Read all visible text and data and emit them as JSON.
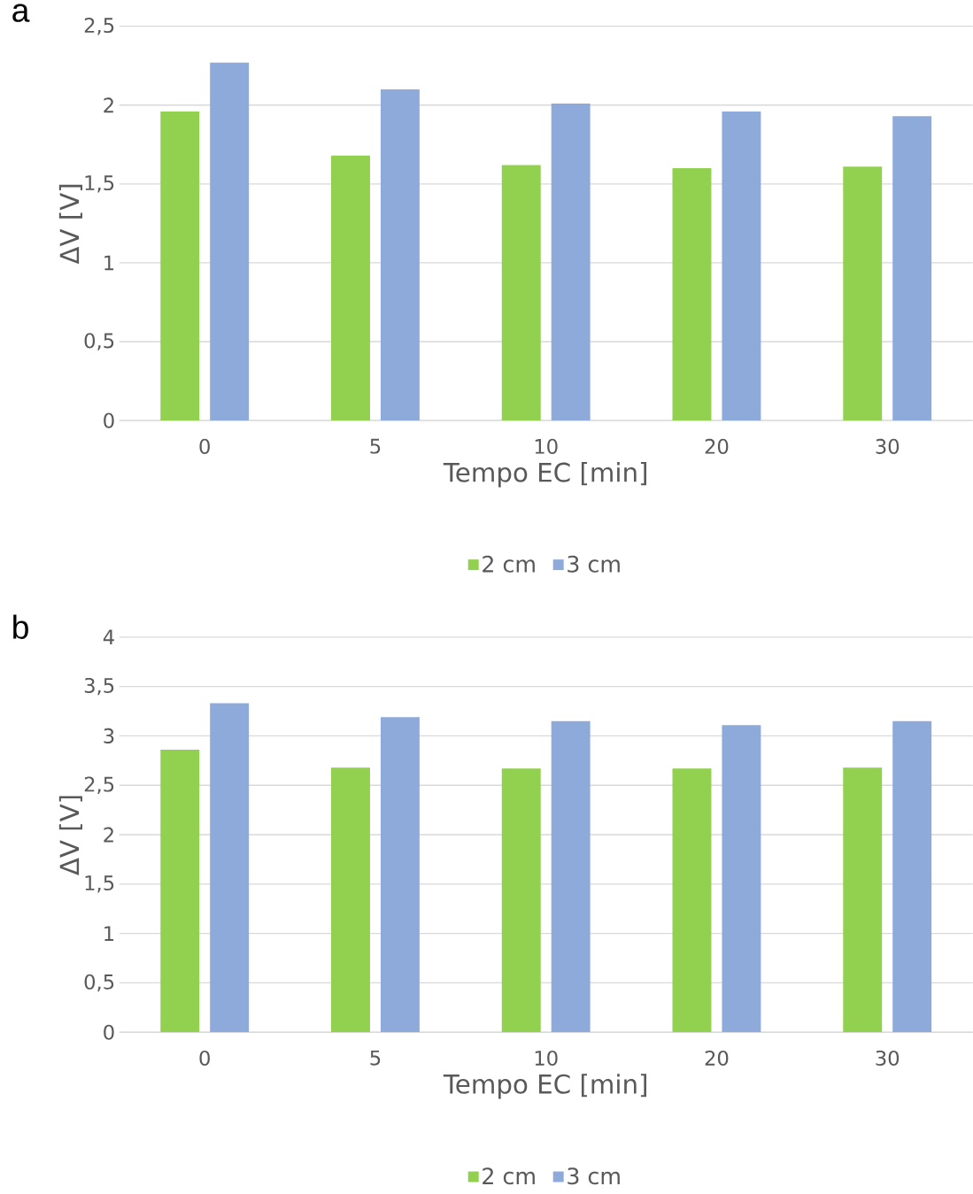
{
  "chart_data": [
    {
      "type": "bar",
      "annotations": [
        "a"
      ],
      "xlabel": "Tempo EC [min]",
      "ylabel": "ΔV [V]",
      "categories": [
        "0",
        "5",
        "10",
        "20",
        "30"
      ],
      "series": [
        {
          "name": "2 cm",
          "color": "#92d050",
          "values": [
            1.96,
            1.68,
            1.62,
            1.6,
            1.61
          ]
        },
        {
          "name": "3 cm",
          "color": "#8eaadb",
          "values": [
            2.27,
            2.1,
            2.01,
            1.96,
            1.93
          ]
        }
      ],
      "ylim": [
        0,
        2.5
      ],
      "yticks": [
        0,
        {
          "value": 0.5,
          "label": "0,5"
        },
        1,
        {
          "value": 1.5,
          "label": "1,5"
        },
        2,
        {
          "value": 2.5,
          "label": "2,5"
        }
      ],
      "grid": "y",
      "legend": "bottom"
    },
    {
      "type": "bar",
      "annotations": [
        "b"
      ],
      "xlabel": "Tempo EC [min]",
      "ylabel": "ΔV [V]",
      "categories": [
        "0",
        "5",
        "10",
        "20",
        "30"
      ],
      "series": [
        {
          "name": "2 cm",
          "color": "#92d050",
          "values": [
            2.86,
            2.68,
            2.67,
            2.67,
            2.68
          ]
        },
        {
          "name": "3 cm",
          "color": "#8eaadb",
          "values": [
            3.33,
            3.19,
            3.15,
            3.11,
            3.15
          ]
        }
      ],
      "ylim": [
        0,
        4
      ],
      "yticks": [
        0,
        {
          "value": 0.5,
          "label": "0,5"
        },
        1,
        {
          "value": 1.5,
          "label": "1,5"
        },
        2,
        {
          "value": 2.5,
          "label": "2,5"
        },
        3,
        {
          "value": 3.5,
          "label": "3,5"
        },
        4
      ],
      "grid": "y",
      "legend": "bottom"
    }
  ]
}
